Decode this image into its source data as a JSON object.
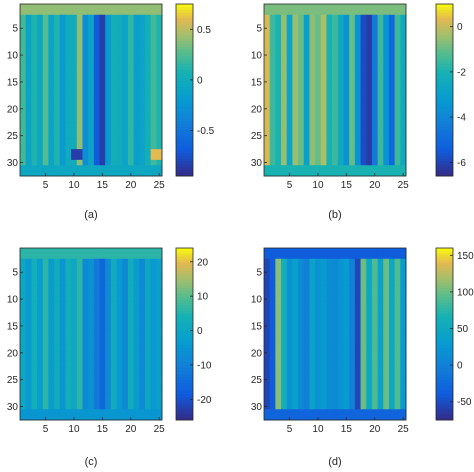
{
  "colors": {
    "axis": "#262626",
    "background": "#ffffff",
    "colormap": "parula"
  },
  "chart_data": [
    {
      "type": "heatmap",
      "caption": "(a)",
      "x_range": [
        0.5,
        25.5
      ],
      "y_range": [
        0.5,
        32.5
      ],
      "x_ticks": [
        5,
        10,
        15,
        20,
        25
      ],
      "y_ticks": [
        5,
        10,
        15,
        20,
        25,
        30
      ],
      "y_reversed": true,
      "colorbar_range": [
        -0.95,
        0.75
      ],
      "colorbar_ticks": [
        0.5,
        0,
        -0.5
      ],
      "column_values": [
        0.2,
        -0.1,
        0.1,
        -0.05,
        0.25,
        -0.1,
        0.1,
        -0.2,
        0.0,
        0.0,
        0.4,
        -0.3,
        -0.1,
        -0.7,
        -0.85,
        -0.2,
        0.05,
        0.0,
        -0.1,
        0.15,
        -0.15,
        -0.1,
        0.05,
        0.2,
        0.1
      ],
      "notes": [
        {
          "rows": [
            1,
            2
          ],
          "cols": [
            1,
            25
          ],
          "value": 0.4
        },
        {
          "rows": [
            31,
            32
          ],
          "cols": [
            1,
            25
          ],
          "value": -0.05
        },
        {
          "rows": [
            28,
            29
          ],
          "cols": [
            10,
            11
          ],
          "value": -0.85
        },
        {
          "rows": [
            28,
            29
          ],
          "cols": [
            24,
            25
          ],
          "value": 0.6
        }
      ]
    },
    {
      "type": "heatmap",
      "caption": "(b)",
      "x_range": [
        0.5,
        25.5
      ],
      "y_range": [
        0.5,
        32.5
      ],
      "x_ticks": [
        5,
        10,
        15,
        20,
        25
      ],
      "y_ticks": [
        5,
        10,
        15,
        20,
        25,
        30
      ],
      "y_reversed": true,
      "colorbar_range": [
        -6.6,
        1.0
      ],
      "colorbar_ticks": [
        0,
        -2,
        -4,
        -6
      ],
      "column_values": [
        0.2,
        -1.5,
        -2.0,
        -0.5,
        -2.8,
        -0.5,
        -1.0,
        -3.0,
        -0.6,
        -1.0,
        -0.3,
        -2.0,
        -1.5,
        -2.5,
        -3.5,
        -1.0,
        -3.5,
        -5.8,
        -6.2,
        -4.5,
        -1.5,
        -3.5,
        -5.0,
        -1.5,
        -2.5
      ],
      "notes": [
        {
          "rows": [
            1,
            2
          ],
          "cols": [
            1,
            25
          ],
          "value": -0.8
        },
        {
          "rows": [
            31,
            32
          ],
          "cols": [
            1,
            25
          ],
          "value": -2.0
        }
      ]
    },
    {
      "type": "heatmap",
      "caption": "(c)",
      "x_range": [
        0.5,
        25.5
      ],
      "y_range": [
        0.5,
        32.5
      ],
      "x_ticks": [
        5,
        10,
        15,
        20,
        25
      ],
      "y_ticks": [
        5,
        10,
        15,
        20,
        25,
        30
      ],
      "y_reversed": true,
      "colorbar_range": [
        -26,
        24
      ],
      "colorbar_ticks": [
        20,
        10,
        0,
        -10,
        -20
      ],
      "column_values": [
        0,
        -4,
        3,
        -3,
        6,
        -3,
        2,
        -5,
        3,
        0,
        6,
        -8,
        -6,
        -12,
        -16,
        -8,
        2,
        -4,
        -8,
        2,
        -3,
        -8,
        0,
        -4,
        -2
      ],
      "notes": [
        {
          "rows": [
            1,
            2
          ],
          "cols": [
            1,
            25
          ],
          "value": 6
        },
        {
          "rows": [
            31,
            32
          ],
          "cols": [
            1,
            25
          ],
          "value": -5
        }
      ]
    },
    {
      "type": "heatmap",
      "caption": "(d)",
      "x_range": [
        0.5,
        25.5
      ],
      "y_range": [
        0.5,
        32.5
      ],
      "x_ticks": [
        5,
        10,
        15,
        20,
        25
      ],
      "y_ticks": [
        5,
        10,
        15,
        20,
        25,
        30
      ],
      "y_reversed": true,
      "colorbar_range": [
        -75,
        160
      ],
      "colorbar_ticks": [
        150,
        100,
        50,
        0,
        -50
      ],
      "column_values": [
        -55,
        -40,
        110,
        60,
        20,
        35,
        10,
        0,
        40,
        20,
        30,
        15,
        10,
        20,
        30,
        0,
        -55,
        100,
        50,
        90,
        40,
        100,
        50,
        90,
        30
      ],
      "notes": [
        {
          "rows": [
            1,
            2
          ],
          "cols": [
            1,
            25
          ],
          "value": -40
        },
        {
          "rows": [
            31,
            32
          ],
          "cols": [
            1,
            25
          ],
          "value": -30
        }
      ]
    }
  ]
}
